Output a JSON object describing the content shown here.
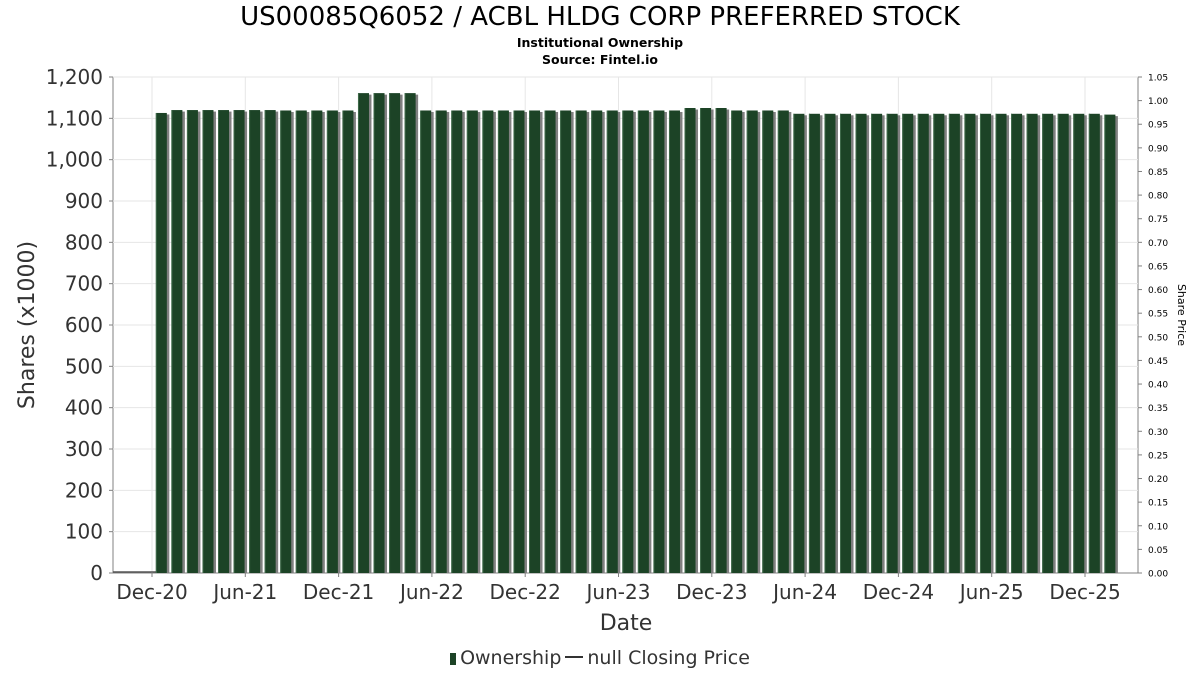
{
  "title": "US00085Q6052 / ACBL HLDG CORP PREFERRED STOCK",
  "subtitle1": "Institutional Ownership",
  "subtitle2": "Source: Fintel.io",
  "legend": {
    "ownership": "Ownership",
    "price": "null Closing Price"
  },
  "colors": {
    "bar": "#1c4326",
    "bar_shadow": "#808080",
    "grid": "#e6e6e6",
    "axis": "#808080"
  },
  "chart_data": {
    "type": "bar",
    "xlabel": "Date",
    "ylabel": "Shares (x1000)",
    "y2label": "Share Price",
    "ylim": [
      0,
      1200
    ],
    "y2lim": [
      0,
      1.05
    ],
    "yticks": [
      "0",
      "100",
      "200",
      "300",
      "400",
      "500",
      "600",
      "700",
      "800",
      "900",
      "1,000",
      "1,100",
      "1,200"
    ],
    "y2ticks": [
      "0.00",
      "0.05",
      "0.10",
      "0.15",
      "0.20",
      "0.25",
      "0.30",
      "0.35",
      "0.40",
      "0.45",
      "0.50",
      "0.55",
      "0.60",
      "0.65",
      "0.70",
      "0.75",
      "0.80",
      "0.85",
      "0.90",
      "0.95",
      "1.00",
      "1.05"
    ],
    "xticks": [
      "Dec-20",
      "Jun-21",
      "Dec-21",
      "Jun-22",
      "Dec-22",
      "Jun-23",
      "Dec-23",
      "Jun-24",
      "Dec-24",
      "Jun-25",
      "Dec-25"
    ],
    "grid": true,
    "legend_position": "bottom",
    "series": [
      {
        "name": "Ownership",
        "values": [
          1113,
          1120,
          1120,
          1120,
          1120,
          1120,
          1120,
          1120,
          1119,
          1119,
          1119,
          1119,
          1119,
          1161,
          1161,
          1161,
          1161,
          1119,
          1119,
          1119,
          1119,
          1119,
          1119,
          1119,
          1119,
          1119,
          1119,
          1119,
          1119,
          1119,
          1119,
          1119,
          1119,
          1119,
          1125,
          1125,
          1125,
          1119,
          1119,
          1119,
          1119,
          1111,
          1111,
          1111,
          1111,
          1111,
          1111,
          1111,
          1111,
          1111,
          1111,
          1111,
          1111,
          1111,
          1111,
          1111,
          1111,
          1111,
          1111,
          1111,
          1111,
          1109
        ]
      }
    ]
  }
}
